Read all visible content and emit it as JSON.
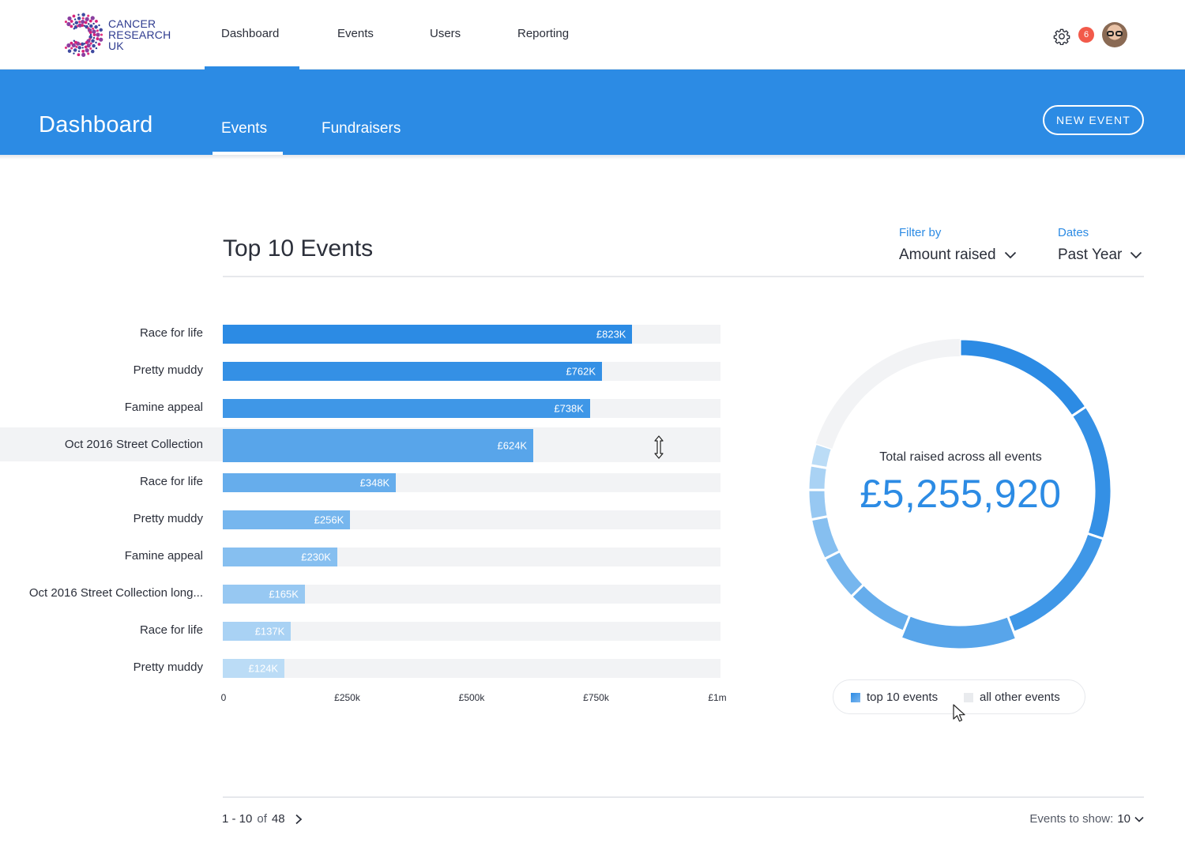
{
  "topnav": {
    "logo_lines": [
      "CANCER",
      "RESEARCH",
      "UK"
    ],
    "items": [
      {
        "label": "Dashboard",
        "active": true
      },
      {
        "label": "Events"
      },
      {
        "label": "Users"
      },
      {
        "label": "Reporting"
      }
    ],
    "notification_count": "6",
    "icons": [
      "settings-gear-icon",
      "user-avatar"
    ]
  },
  "hero": {
    "title": "Dashboard",
    "tabs": [
      {
        "label": "Events",
        "active": true
      },
      {
        "label": "Fundraisers"
      }
    ],
    "new_event_label": "NEW EVENT",
    "color": "#2c8be4"
  },
  "section": {
    "title": "Top 10 Events",
    "filter_label": "Filter by",
    "filter_value": "Amount raised",
    "dates_label": "Dates",
    "dates_value": "Past Year"
  },
  "chart_data": [
    {
      "type": "bar",
      "orientation": "horizontal",
      "categories": [
        "Race for life",
        "Pretty muddy",
        "Famine appeal",
        "Oct 2016 Street Collection",
        "Race for life",
        "Pretty muddy",
        "Famine appeal",
        "Oct 2016 Street Collection long...",
        "Race for life",
        "Pretty muddy"
      ],
      "values": [
        823,
        762,
        738,
        624,
        348,
        256,
        230,
        165,
        137,
        124
      ],
      "value_labels": [
        "£823K",
        "£762K",
        "£738K",
        "£624K",
        "£348K",
        "£256K",
        "£230K",
        "£165K",
        "£137K",
        "£124K"
      ],
      "highlighted_index": 3,
      "xlim": [
        0,
        1000
      ],
      "x_ticks": [
        0,
        250,
        500,
        750,
        1000
      ],
      "x_tick_labels": [
        "0",
        "£250k",
        "£500k",
        "£750k",
        "£1m"
      ],
      "grid": false
    },
    {
      "type": "pie",
      "style": "donut",
      "caption": "Total raised across all events",
      "total": "£5,255,920",
      "slices": [
        823,
        762,
        738,
        624,
        348,
        256,
        230,
        165,
        137,
        124,
        1048.92
      ],
      "legend": [
        {
          "label": "top 10 events",
          "color": "#2c8be4"
        },
        {
          "label": "all other events",
          "color": "#f2f3f5"
        }
      ],
      "legend_placement": "bottom"
    }
  ],
  "footer": {
    "range": "1 - 10",
    "of": "of",
    "total": "48",
    "show_label": "Events to show:",
    "show_value": "10"
  }
}
